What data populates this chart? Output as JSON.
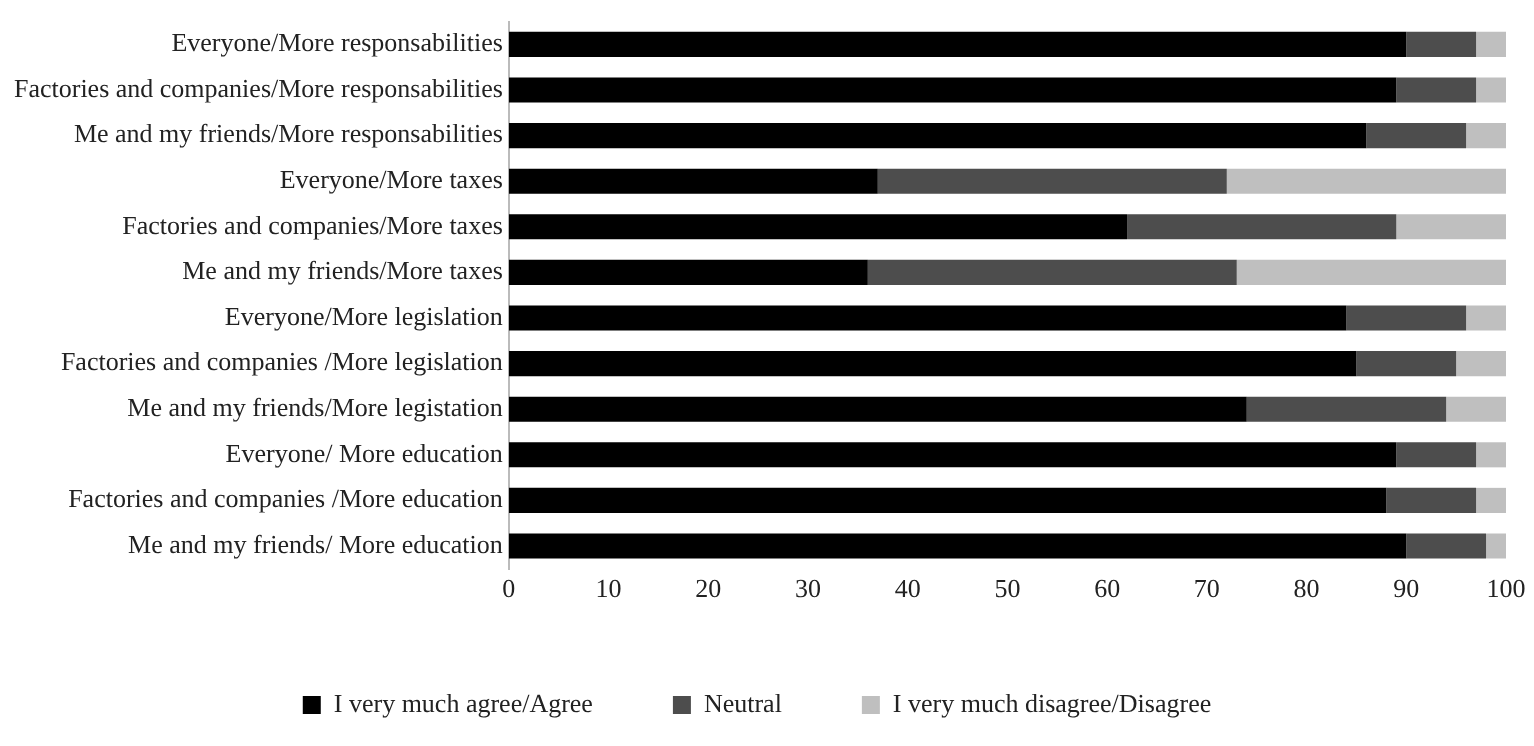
{
  "chart_data": {
    "type": "bar",
    "orientation": "horizontal",
    "stacked": true,
    "categories": [
      "Everyone/More responsabilities",
      "Factories and companies/More responsabilities",
      "Me and my friends/More responsabilities",
      "Everyone/More taxes",
      "Factories and companies/More taxes",
      "Me and my friends/More taxes",
      "Everyone/More legislation",
      "Factories and companies /More legislation",
      "Me and my friends/More legistation",
      "Everyone/ More education",
      "Factories and companies /More education",
      "Me and my friends/ More education"
    ],
    "series": [
      {
        "name": "I very much agree/Agree",
        "color": "#000000",
        "values": [
          90,
          89,
          86,
          37,
          62,
          36,
          84,
          85,
          74,
          89,
          88,
          90
        ]
      },
      {
        "name": "Neutral",
        "color": "#4d4d4d",
        "values": [
          7,
          8,
          10,
          35,
          27,
          37,
          12,
          10,
          20,
          8,
          9,
          8
        ]
      },
      {
        "name": "I very much disagree/Disagree",
        "color": "#bfbfbf",
        "values": [
          3,
          3,
          4,
          28,
          11,
          27,
          4,
          5,
          6,
          3,
          3,
          2
        ]
      }
    ],
    "xlim": [
      0,
      100
    ],
    "xticks": [
      0,
      10,
      20,
      30,
      40,
      50,
      60,
      70,
      80,
      90,
      100
    ],
    "grid": false,
    "legend": "bottom"
  }
}
